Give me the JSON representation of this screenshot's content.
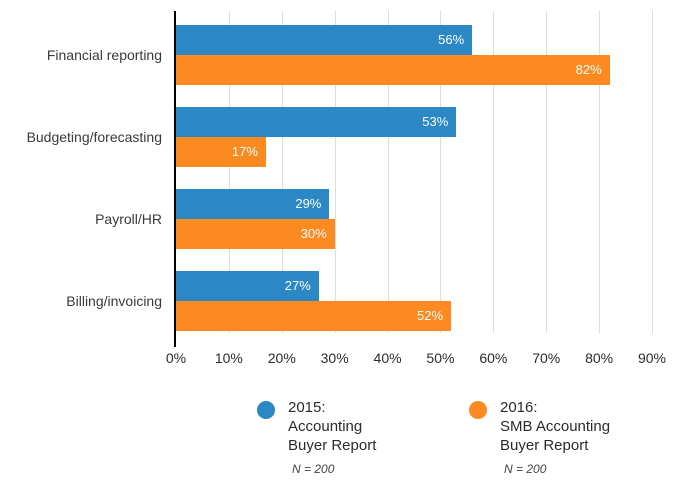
{
  "chart_data": {
    "type": "bar",
    "orientation": "horizontal",
    "title": "",
    "xlabel": "",
    "ylabel": "",
    "categories": [
      "Financial reporting",
      "Budgeting/forecasting",
      "Payroll/HR",
      "Billing/invoicing"
    ],
    "series": [
      {
        "name": "2015:\nAccounting\nBuyer Report",
        "note": "N = 200",
        "color": "#2C87C5",
        "values": [
          56,
          53,
          29,
          27
        ]
      },
      {
        "name": "2016:\nSMB Accounting\nBuyer Report",
        "note": "N = 200",
        "color": "#FB8B21",
        "values": [
          82,
          17,
          30,
          52
        ]
      }
    ],
    "value_suffix": "%",
    "x_ticks": [
      "0%",
      "10%",
      "20%",
      "30%",
      "40%",
      "50%",
      "60%",
      "70%",
      "80%",
      "90%"
    ],
    "xlim": [
      0,
      90
    ],
    "grid": "vertical",
    "gridline_color": "#dddddd",
    "axis_color": "#000000",
    "legend_position": "bottom"
  }
}
